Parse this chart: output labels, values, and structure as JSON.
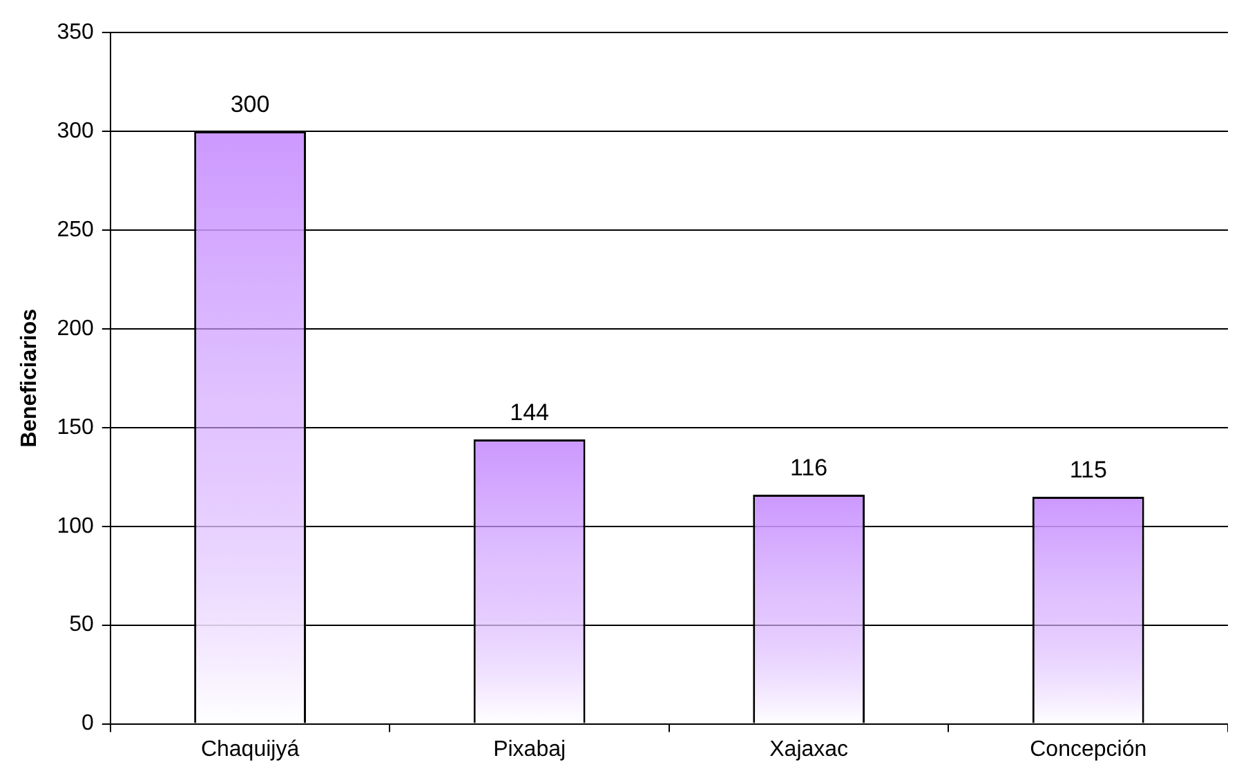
{
  "chart_data": {
    "type": "bar",
    "ylabel": "Beneficiarios",
    "categories": [
      "Chaquijyá",
      "Pixabaj",
      "Xajaxac",
      "Concepción"
    ],
    "series": [
      {
        "color": "#cc99ff",
        "values": [
          300,
          144,
          116,
          115
        ]
      }
    ],
    "ylim": [
      0,
      350
    ],
    "yticks": [
      0,
      50,
      100,
      150,
      200,
      250,
      300,
      350
    ],
    "grid": "y",
    "data_labels": true,
    "legend": false
  }
}
